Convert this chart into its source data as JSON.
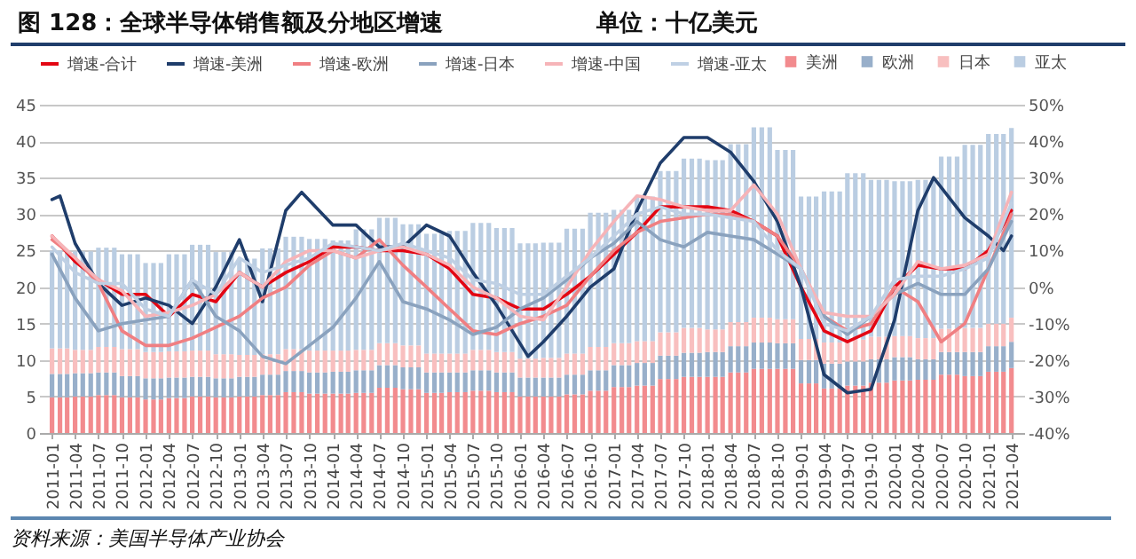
{
  "chart_data": {
    "type": "bar",
    "title": "图 128：全球半导体销售额及分地区增速",
    "annotations": [
      "单位：十亿美元",
      "资料来源：美国半导体产业协会"
    ],
    "stacked": true,
    "grid": "y",
    "legend": "top",
    "ylim": [
      0,
      45
    ],
    "yticks": [
      0,
      5,
      10,
      15,
      20,
      25,
      30,
      35,
      40,
      45
    ],
    "y2lim": [
      -40,
      50
    ],
    "y2ticks": [
      {
        "value": -40,
        "label": "-40%"
      },
      {
        "value": -30,
        "label": "-30%"
      },
      {
        "value": -20,
        "label": "-20%"
      },
      {
        "value": -10,
        "label": "-10%"
      },
      {
        "value": 0,
        "label": "0%"
      },
      {
        "value": 10,
        "label": "10%"
      },
      {
        "value": 20,
        "label": "20%"
      },
      {
        "value": 30,
        "label": "30%"
      },
      {
        "value": 40,
        "label": "40%"
      },
      {
        "value": 50,
        "label": "50%"
      }
    ],
    "xlim": [
      "2010-12-16",
      "2021-04-16"
    ],
    "xticks": [
      "2011-01",
      "2011-04",
      "2011-07",
      "2011-10",
      "2012-01",
      "2012-04",
      "2012-07",
      "2012-10",
      "2013-01",
      "2013-04",
      "2013-07",
      "2013-10",
      "2014-01",
      "2014-04",
      "2014-07",
      "2014-10",
      "2015-01",
      "2015-04",
      "2015-07",
      "2015-10",
      "2016-01",
      "2016-04",
      "2016-07",
      "2016-10",
      "2017-01",
      "2017-04",
      "2017-07",
      "2017-10",
      "2018-01",
      "2018-04",
      "2018-07",
      "2018-10",
      "2019-01",
      "2019-04",
      "2019-07",
      "2019-10",
      "2020-01",
      "2020-04",
      "2020-07",
      "2020-10",
      "2021-01",
      "2021-04"
    ],
    "x": [
      "2011-01",
      "2011-02",
      "2011-03",
      "2011-04",
      "2011-05",
      "2011-06",
      "2011-07",
      "2011-08",
      "2011-09",
      "2011-10",
      "2011-11",
      "2011-12",
      "2012-01",
      "2012-02",
      "2012-03",
      "2012-04",
      "2012-05",
      "2012-06",
      "2012-07",
      "2012-08",
      "2012-09",
      "2012-10",
      "2012-11",
      "2012-12",
      "2013-01",
      "2013-02",
      "2013-03",
      "2013-04",
      "2013-05",
      "2013-06",
      "2013-07",
      "2013-08",
      "2013-09",
      "2013-10",
      "2013-11",
      "2013-12",
      "2014-01",
      "2014-02",
      "2014-03",
      "2014-04",
      "2014-05",
      "2014-06",
      "2014-07",
      "2014-08",
      "2014-09",
      "2014-10",
      "2014-11",
      "2014-12",
      "2015-01",
      "2015-02",
      "2015-03",
      "2015-04",
      "2015-05",
      "2015-06",
      "2015-07",
      "2015-08",
      "2015-09",
      "2015-10",
      "2015-11",
      "2015-12",
      "2016-01",
      "2016-02",
      "2016-03",
      "2016-04",
      "2016-05",
      "2016-06",
      "2016-07",
      "2016-08",
      "2016-09",
      "2016-10",
      "2016-11",
      "2016-12",
      "2017-01",
      "2017-02",
      "2017-03",
      "2017-04",
      "2017-05",
      "2017-06",
      "2017-07",
      "2017-08",
      "2017-09",
      "2017-10",
      "2017-11",
      "2017-12",
      "2018-01",
      "2018-02",
      "2018-03",
      "2018-04",
      "2018-05",
      "2018-06",
      "2018-07",
      "2018-08",
      "2018-09",
      "2018-10",
      "2018-11",
      "2018-12",
      "2019-01",
      "2019-02",
      "2019-03",
      "2019-04",
      "2019-05",
      "2019-06",
      "2019-07",
      "2019-08",
      "2019-09",
      "2019-10",
      "2019-11",
      "2019-12",
      "2020-01",
      "2020-02",
      "2020-03",
      "2020-04",
      "2020-05",
      "2020-06",
      "2020-07",
      "2020-08",
      "2020-09",
      "2020-10",
      "2020-11",
      "2020-12",
      "2021-01",
      "2021-02",
      "2021-03",
      "2021-04"
    ],
    "series": [
      {
        "name": "美洲",
        "type": "bar",
        "color": "#f28b8e",
        "values": [
          4.9,
          4.9,
          4.9,
          5.0,
          5.0,
          5.0,
          5.2,
          5.2,
          5.2,
          4.9,
          4.9,
          4.9,
          4.6,
          4.6,
          4.6,
          4.8,
          4.8,
          4.8,
          5.0,
          5.0,
          5.0,
          4.9,
          4.9,
          4.9,
          5.0,
          5.0,
          5.0,
          5.2,
          5.2,
          5.2,
          5.6,
          5.6,
          5.6,
          5.4,
          5.4,
          5.4,
          5.4,
          5.4,
          5.4,
          5.5,
          5.5,
          5.5,
          6.2,
          6.2,
          6.2,
          6.0,
          6.0,
          6.0,
          5.5,
          5.5,
          5.5,
          5.6,
          5.6,
          5.6,
          5.8,
          5.8,
          5.8,
          5.6,
          5.6,
          5.6,
          5.0,
          5.0,
          5.0,
          5.0,
          5.0,
          5.0,
          5.3,
          5.3,
          5.3,
          5.8,
          5.8,
          5.8,
          6.3,
          6.3,
          6.3,
          6.5,
          6.5,
          6.5,
          7.4,
          7.4,
          7.4,
          7.7,
          7.7,
          7.7,
          7.7,
          7.7,
          7.7,
          8.3,
          8.3,
          8.3,
          8.8,
          8.8,
          8.8,
          8.8,
          8.8,
          8.8,
          6.8,
          6.8,
          6.8,
          6.1,
          6.1,
          6.1,
          6.5,
          6.5,
          6.5,
          6.9,
          6.9,
          6.9,
          7.2,
          7.2,
          7.2,
          7.3,
          7.3,
          7.3,
          8.0,
          8.0,
          8.0,
          7.8,
          7.8,
          7.8,
          8.4,
          8.4,
          8.4,
          8.9
        ]
      },
      {
        "name": "欧洲",
        "type": "bar",
        "color": "#98afca",
        "values": [
          3.2,
          3.2,
          3.2,
          3.2,
          3.2,
          3.2,
          3.1,
          3.1,
          3.1,
          2.9,
          2.9,
          2.9,
          2.9,
          2.9,
          2.9,
          2.8,
          2.8,
          2.8,
          2.7,
          2.7,
          2.7,
          2.6,
          2.6,
          2.6,
          2.7,
          2.7,
          2.7,
          2.8,
          2.8,
          2.8,
          2.9,
          2.9,
          2.9,
          2.9,
          2.9,
          2.9,
          3.0,
          3.0,
          3.0,
          3.1,
          3.1,
          3.1,
          3.1,
          3.1,
          3.1,
          3.0,
          3.0,
          3.0,
          2.8,
          2.8,
          2.8,
          2.7,
          2.7,
          2.7,
          2.8,
          2.8,
          2.8,
          2.7,
          2.7,
          2.7,
          2.6,
          2.6,
          2.6,
          2.6,
          2.6,
          2.6,
          2.7,
          2.7,
          2.7,
          2.8,
          2.8,
          2.8,
          3.0,
          3.0,
          3.0,
          3.1,
          3.1,
          3.1,
          3.2,
          3.2,
          3.2,
          3.3,
          3.3,
          3.3,
          3.4,
          3.4,
          3.4,
          3.6,
          3.6,
          3.6,
          3.6,
          3.6,
          3.6,
          3.5,
          3.5,
          3.5,
          3.2,
          3.2,
          3.2,
          3.4,
          3.4,
          3.4,
          3.3,
          3.3,
          3.3,
          3.2,
          3.2,
          3.2,
          3.2,
          3.2,
          3.2,
          2.8,
          2.8,
          2.8,
          3.1,
          3.1,
          3.1,
          3.3,
          3.3,
          3.3,
          3.5,
          3.5,
          3.5,
          3.6
        ]
      },
      {
        "name": "日本",
        "type": "bar",
        "color": "#f8bfbf",
        "values": [
          3.5,
          3.5,
          3.5,
          3.2,
          3.2,
          3.2,
          3.5,
          3.5,
          3.5,
          3.7,
          3.7,
          3.7,
          3.6,
          3.6,
          3.6,
          3.6,
          3.6,
          3.6,
          3.6,
          3.6,
          3.6,
          3.3,
          3.3,
          3.3,
          3.0,
          3.0,
          3.0,
          2.8,
          2.8,
          2.8,
          3.0,
          3.0,
          3.0,
          3.0,
          3.0,
          3.0,
          2.9,
          2.9,
          2.9,
          2.8,
          2.8,
          2.8,
          3.0,
          3.0,
          3.0,
          3.0,
          3.0,
          3.0,
          2.6,
          2.6,
          2.6,
          2.6,
          2.6,
          2.6,
          2.8,
          2.8,
          2.8,
          2.8,
          2.8,
          2.8,
          2.6,
          2.6,
          2.6,
          2.7,
          2.7,
          2.7,
          2.9,
          2.9,
          2.9,
          3.2,
          3.2,
          3.2,
          3.0,
          3.0,
          3.0,
          3.0,
          3.0,
          3.0,
          3.2,
          3.2,
          3.2,
          3.4,
          3.4,
          3.4,
          3.1,
          3.1,
          3.1,
          3.3,
          3.3,
          3.3,
          3.4,
          3.4,
          3.4,
          3.3,
          3.3,
          3.3,
          2.9,
          2.9,
          2.9,
          2.9,
          2.9,
          2.9,
          3.0,
          3.0,
          3.0,
          3.1,
          3.1,
          3.1,
          2.9,
          2.9,
          2.9,
          2.9,
          2.9,
          2.9,
          3.2,
          3.2,
          3.2,
          3.3,
          3.3,
          3.3,
          3.1,
          3.1,
          3.1,
          3.3
        ]
      },
      {
        "name": "亚太",
        "type": "bar",
        "color": "#bacde2",
        "values": [
          13.4,
          13.4,
          13.4,
          13.5,
          13.5,
          13.5,
          13.6,
          13.6,
          13.6,
          13.0,
          13.0,
          13.0,
          12.2,
          12.2,
          12.2,
          13.3,
          13.3,
          13.3,
          14.5,
          14.5,
          14.5,
          14.0,
          14.0,
          14.0,
          13.2,
          13.2,
          13.2,
          14.5,
          14.5,
          14.5,
          15.4,
          15.4,
          15.4,
          15.3,
          15.3,
          15.3,
          15.1,
          15.1,
          15.1,
          16.5,
          16.5,
          16.5,
          17.2,
          17.2,
          17.2,
          16.6,
          16.6,
          16.6,
          16.4,
          16.4,
          16.4,
          16.8,
          16.8,
          16.8,
          17.4,
          17.4,
          17.4,
          17.0,
          17.0,
          17.0,
          15.8,
          15.8,
          15.8,
          15.8,
          15.8,
          15.8,
          17.1,
          17.1,
          17.1,
          18.4,
          18.4,
          18.4,
          18.3,
          18.3,
          18.3,
          19.8,
          19.8,
          19.8,
          22.1,
          22.1,
          22.1,
          23.2,
          23.2,
          23.2,
          23.2,
          23.2,
          23.2,
          24.4,
          24.4,
          24.4,
          26.1,
          26.1,
          26.1,
          23.2,
          23.2,
          23.2,
          19.5,
          19.5,
          19.5,
          20.7,
          20.7,
          20.7,
          22.8,
          22.8,
          22.8,
          21.5,
          21.5,
          21.5,
          21.2,
          21.2,
          21.2,
          21.7,
          21.7,
          21.7,
          23.6,
          23.6,
          23.6,
          25.1,
          25.1,
          25.1,
          26.0,
          26.0,
          26.0,
          26.0
        ]
      },
      {
        "name": "增速-合计",
        "type": "line",
        "axis": "y2",
        "color": "#e30613",
        "x": [
          "2011-01",
          "2011-04",
          "2011-07",
          "2011-10",
          "2012-01",
          "2012-04",
          "2012-07",
          "2012-10",
          "2013-01",
          "2013-04",
          "2013-07",
          "2013-10",
          "2014-01",
          "2014-04",
          "2014-07",
          "2014-10",
          "2015-01",
          "2015-04",
          "2015-07",
          "2015-10",
          "2016-01",
          "2016-04",
          "2016-07",
          "2016-10",
          "2017-01",
          "2017-04",
          "2017-07",
          "2017-10",
          "2018-01",
          "2018-04",
          "2018-07",
          "2018-10",
          "2019-01",
          "2019-04",
          "2019-07",
          "2019-10",
          "2020-01",
          "2020-04",
          "2020-07",
          "2020-10",
          "2021-01",
          "2021-04"
        ],
        "values": [
          14,
          7,
          2,
          -2,
          -2,
          -8,
          -2,
          -4,
          4,
          0,
          4,
          7,
          11,
          11,
          10,
          10,
          9,
          5,
          -2,
          -3,
          -6,
          -6,
          -2,
          3,
          9,
          15,
          22,
          22,
          22,
          21,
          18,
          14,
          0,
          -12,
          -15,
          -12,
          0,
          6,
          5,
          5,
          10,
          21
        ]
      },
      {
        "name": "增速-美洲",
        "type": "line",
        "axis": "y2",
        "color": "#1f3d6b",
        "x": [
          "2011-01",
          "2011-02",
          "2011-04",
          "2011-07",
          "2011-10",
          "2012-01",
          "2012-04",
          "2012-07",
          "2012-10",
          "2013-01",
          "2013-04",
          "2013-07",
          "2013-09",
          "2014-01",
          "2014-04",
          "2014-07",
          "2014-10",
          "2015-01",
          "2015-04",
          "2015-07",
          "2015-10",
          "2016-02",
          "2016-04",
          "2016-07",
          "2016-10",
          "2017-01",
          "2017-04",
          "2017-07",
          "2017-10",
          "2018-01",
          "2018-04",
          "2018-07",
          "2018-10",
          "2019-01",
          "2019-04",
          "2019-07",
          "2019-10",
          "2020-01",
          "2020-04",
          "2020-06",
          "2020-10",
          "2021-01",
          "2021-03",
          "2021-04"
        ],
        "values": [
          24,
          25,
          12,
          1,
          -5,
          -3,
          -5,
          -10,
          0,
          13,
          -4,
          21,
          26,
          17,
          17,
          11,
          11,
          17,
          14,
          4,
          -5,
          -19,
          -15,
          -8,
          0,
          5,
          21,
          34,
          41,
          41,
          37,
          29,
          18,
          0,
          -24,
          -29,
          -28,
          -9,
          21,
          30,
          19,
          14,
          10,
          14
        ]
      },
      {
        "name": "增速-欧洲",
        "type": "line",
        "axis": "y2",
        "color": "#f07f82",
        "x": [
          "2011-01",
          "2011-04",
          "2011-07",
          "2011-10",
          "2012-01",
          "2012-04",
          "2012-07",
          "2012-10",
          "2013-01",
          "2013-04",
          "2013-07",
          "2013-10",
          "2014-01",
          "2014-04",
          "2014-07",
          "2014-10",
          "2015-01",
          "2015-04",
          "2015-07",
          "2015-10",
          "2016-01",
          "2016-04",
          "2016-07",
          "2016-10",
          "2017-01",
          "2017-04",
          "2017-07",
          "2017-10",
          "2018-01",
          "2018-04",
          "2018-07",
          "2018-10",
          "2019-01",
          "2019-04",
          "2019-07",
          "2019-10",
          "2020-01",
          "2020-04",
          "2020-07",
          "2020-10",
          "2021-01",
          "2021-04"
        ],
        "values": [
          13,
          8,
          1,
          -12,
          -16,
          -16,
          -14,
          -11,
          -8,
          -3,
          0,
          6,
          10,
          8,
          13,
          6,
          0,
          -6,
          -12,
          -13,
          -10,
          -8,
          -5,
          3,
          10,
          15,
          18,
          19,
          20,
          20,
          18,
          14,
          5,
          -8,
          -12,
          -10,
          0,
          -4,
          -15,
          -10,
          5,
          20
        ]
      },
      {
        "name": "增速-日本",
        "type": "line",
        "axis": "y2",
        "color": "#8aa2be",
        "x": [
          "2011-01",
          "2011-04",
          "2011-07",
          "2011-10",
          "2012-01",
          "2012-04",
          "2012-07",
          "2012-10",
          "2013-01",
          "2013-04",
          "2013-07",
          "2013-10",
          "2014-01",
          "2014-04",
          "2014-07",
          "2014-10",
          "2015-01",
          "2015-04",
          "2015-07",
          "2015-10",
          "2016-01",
          "2016-04",
          "2016-07",
          "2016-10",
          "2017-01",
          "2017-04",
          "2017-07",
          "2017-10",
          "2018-01",
          "2018-04",
          "2018-07",
          "2018-10",
          "2019-01",
          "2019-04",
          "2019-07",
          "2019-10",
          "2020-01",
          "2020-04",
          "2020-07",
          "2020-10",
          "2021-01",
          "2021-04"
        ],
        "values": [
          9,
          -3,
          -12,
          -10,
          -9,
          -8,
          2,
          -8,
          -12,
          -19,
          -21,
          -16,
          -11,
          -3,
          7,
          -4,
          -6,
          -9,
          -13,
          -11,
          -6,
          -3,
          2,
          8,
          12,
          18,
          13,
          11,
          15,
          14,
          13,
          9,
          5,
          -8,
          -13,
          -8,
          -2,
          1,
          -2,
          -2,
          5,
          18
        ]
      },
      {
        "name": "增速-中国",
        "type": "line",
        "axis": "y2",
        "color": "#f6b4b8",
        "x": [
          "2011-01",
          "2011-04",
          "2011-07",
          "2011-10",
          "2012-01",
          "2012-04",
          "2012-07",
          "2012-10",
          "2013-01",
          "2013-04",
          "2013-07",
          "2013-10",
          "2014-01",
          "2014-04",
          "2014-07",
          "2014-10",
          "2015-01",
          "2015-04",
          "2015-07",
          "2015-10",
          "2016-01",
          "2016-04",
          "2016-07",
          "2016-10",
          "2017-01",
          "2017-04",
          "2017-07",
          "2017-10",
          "2018-01",
          "2018-04",
          "2018-07",
          "2018-10",
          "2019-01",
          "2019-04",
          "2019-07",
          "2019-10",
          "2020-01",
          "2020-04",
          "2020-07",
          "2020-10",
          "2021-01",
          "2021-04"
        ],
        "values": [
          14,
          8,
          2,
          -1,
          -8,
          -7,
          -5,
          -2,
          4,
          0,
          7,
          10,
          10,
          8,
          10,
          11,
          9,
          6,
          0,
          -3,
          -8,
          -9,
          0,
          10,
          18,
          25,
          24,
          22,
          21,
          21,
          28,
          20,
          5,
          -7,
          -8,
          -8,
          -2,
          7,
          5,
          6,
          9,
          26
        ]
      },
      {
        "name": "增速-亚太",
        "type": "line",
        "axis": "y2",
        "color": "#bfd0e4",
        "x": [
          "2011-01",
          "2011-04",
          "2011-07",
          "2011-10",
          "2012-01",
          "2012-04",
          "2012-07",
          "2012-10",
          "2013-01",
          "2013-04",
          "2013-07",
          "2013-10",
          "2014-01",
          "2014-04",
          "2014-07",
          "2014-10",
          "2015-01",
          "2015-04",
          "2015-07",
          "2015-10",
          "2016-01",
          "2016-04",
          "2016-07",
          "2016-10",
          "2017-01",
          "2017-04",
          "2017-07",
          "2017-10",
          "2018-01",
          "2018-04",
          "2018-07",
          "2018-10",
          "2019-01",
          "2019-04",
          "2019-07",
          "2019-10",
          "2020-01",
          "2020-04",
          "2020-07",
          "2020-10",
          "2021-01",
          "2021-04"
        ],
        "values": [
          11,
          4,
          1,
          1,
          -6,
          -8,
          2,
          -2,
          8,
          4,
          6,
          8,
          12,
          11,
          10,
          12,
          10,
          8,
          2,
          1,
          -2,
          -2,
          3,
          8,
          14,
          20,
          22,
          20,
          20,
          19,
          18,
          10,
          5,
          -10,
          -12,
          -8,
          2,
          3,
          3,
          5,
          8,
          23
        ]
      }
    ]
  }
}
